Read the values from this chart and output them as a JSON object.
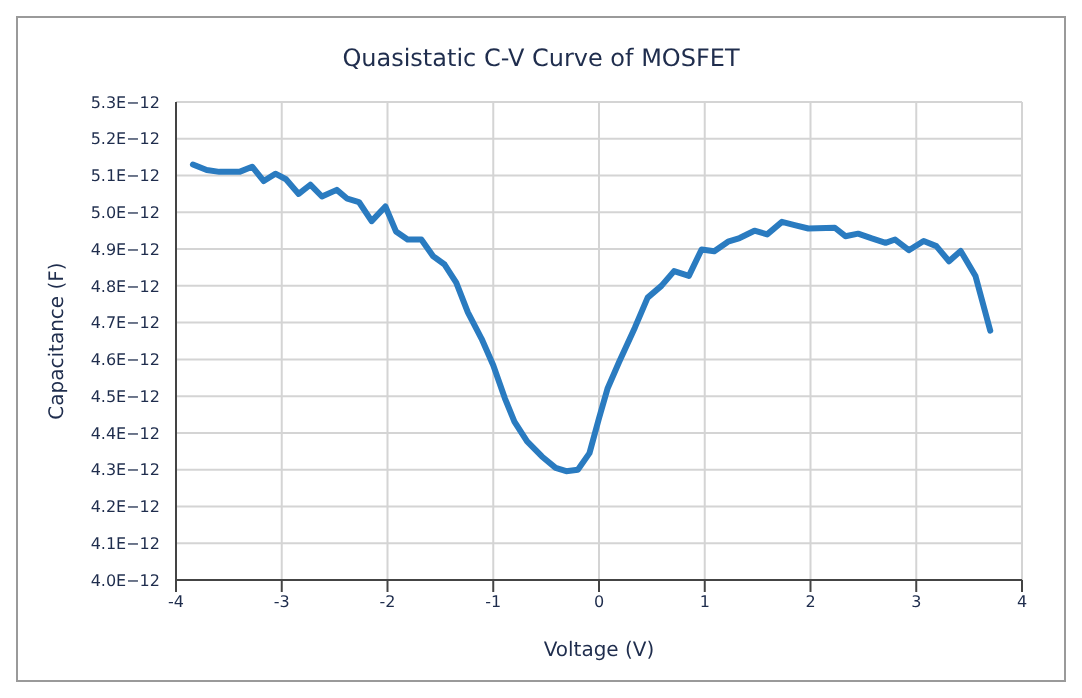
{
  "chart_data": {
    "type": "line",
    "title": "Quasistatic C-V Curve of MOSFET",
    "xlabel": "Voltage (V)",
    "ylabel": "Capacitance (F)",
    "series": [
      {
        "color": "#2a7bc0",
        "x": [
          -3.84,
          -3.71,
          -3.59,
          -3.4,
          -3.28,
          -3.17,
          -3.06,
          -2.96,
          -2.84,
          -2.73,
          -2.62,
          -2.48,
          -2.38,
          -2.27,
          -2.15,
          -2.02,
          -1.92,
          -1.81,
          -1.68,
          -1.57,
          -1.46,
          -1.35,
          -1.24,
          -1.11,
          -1.0,
          -0.89,
          -0.8,
          -0.68,
          -0.54,
          -0.41,
          -0.31,
          -0.2,
          -0.09,
          0.0,
          0.08,
          0.19,
          0.34,
          0.46,
          0.59,
          0.71,
          0.85,
          0.97,
          1.09,
          1.22,
          1.33,
          1.47,
          1.59,
          1.73,
          1.85,
          1.98,
          2.23,
          2.33,
          2.45,
          2.58,
          2.71,
          2.8,
          2.93,
          3.07,
          3.19,
          3.31,
          3.42,
          3.56,
          3.7
        ],
        "values": [
          5.13e-12,
          5.115e-12,
          5.11e-12,
          5.11e-12,
          5.124e-12,
          5.085e-12,
          5.105e-12,
          5.09e-12,
          5.05e-12,
          5.075e-12,
          5.043e-12,
          5.061e-12,
          5.037e-12,
          5.028e-12,
          4.976e-12,
          5.016e-12,
          4.948e-12,
          4.926e-12,
          4.926e-12,
          4.881e-12,
          4.858e-12,
          4.809e-12,
          4.728e-12,
          4.656e-12,
          4.584e-12,
          4.494e-12,
          4.431e-12,
          4.377e-12,
          4.336e-12,
          4.305e-12,
          4.296e-12,
          4.3e-12,
          4.345e-12,
          4.44e-12,
          4.52e-12,
          4.593e-12,
          4.687e-12,
          4.768e-12,
          4.8e-12,
          4.84e-12,
          4.827e-12,
          4.899e-12,
          4.894e-12,
          4.92e-12,
          4.93e-12,
          4.95e-12,
          4.94e-12,
          4.974e-12,
          4.965e-12,
          4.956e-12,
          4.958e-12,
          4.935e-12,
          4.942e-12,
          4.929e-12,
          4.917e-12,
          4.926e-12,
          4.897e-12,
          4.922e-12,
          4.908e-12,
          4.867e-12,
          4.895e-12,
          4.827e-12,
          4.678e-12
        ]
      }
    ],
    "xlim": [
      -4,
      4
    ],
    "xticks": [
      -4,
      -3,
      -2,
      -1,
      0,
      1,
      2,
      3,
      4
    ],
    "ylim": [
      4e-12,
      5.3e-12
    ],
    "yticks": [
      {
        "value": 4e-12,
        "label": "4.0E−12"
      },
      {
        "value": 4.1e-12,
        "label": "4.1E−12"
      },
      {
        "value": 4.2e-12,
        "label": "4.2E−12"
      },
      {
        "value": 4.3e-12,
        "label": "4.3E−12"
      },
      {
        "value": 4.4e-12,
        "label": "4.4E−12"
      },
      {
        "value": 4.5e-12,
        "label": "4.5E−12"
      },
      {
        "value": 4.6e-12,
        "label": "4.6E−12"
      },
      {
        "value": 4.7e-12,
        "label": "4.7E−12"
      },
      {
        "value": 4.8e-12,
        "label": "4.8E−12"
      },
      {
        "value": 4.9e-12,
        "label": "4.9E−12"
      },
      {
        "value": 5e-12,
        "label": "5.0E−12"
      },
      {
        "value": 5.1e-12,
        "label": "5.1E−12"
      },
      {
        "value": 5.2e-12,
        "label": "5.2E−12"
      },
      {
        "value": 5.3e-12,
        "label": "5.3E−12"
      }
    ],
    "grid": true,
    "marker": "none",
    "line_style": "solid",
    "legend": false
  }
}
